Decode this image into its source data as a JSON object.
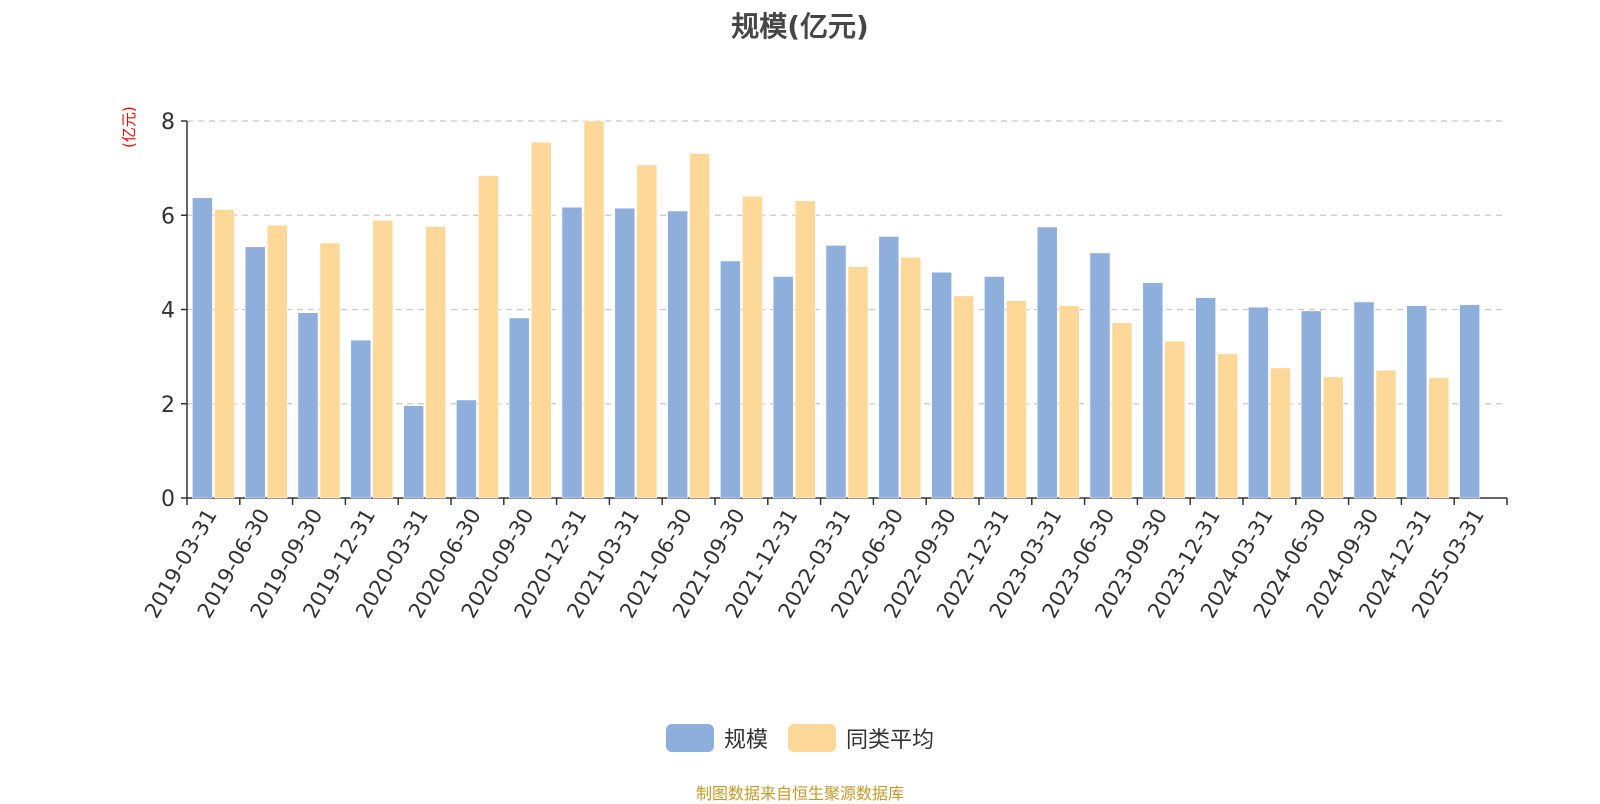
{
  "chart_data": {
    "type": "bar",
    "title": "规模(亿元)",
    "ylabel": "(亿元)",
    "ylim": [
      0,
      8
    ],
    "yticks": [
      0,
      2,
      4,
      6,
      8
    ],
    "grid": true,
    "legend_placement": "bottom-center",
    "categories": [
      "2019-03-31",
      "2019-06-30",
      "2019-09-30",
      "2019-12-31",
      "2020-03-31",
      "2020-06-30",
      "2020-09-30",
      "2020-12-31",
      "2021-03-31",
      "2021-06-30",
      "2021-09-30",
      "2021-12-31",
      "2022-03-31",
      "2022-06-30",
      "2022-09-30",
      "2022-12-31",
      "2023-03-31",
      "2023-06-30",
      "2023-09-30",
      "2023-12-31",
      "2024-03-31",
      "2024-06-30",
      "2024-09-30",
      "2024-12-31",
      "2025-03-31"
    ],
    "series": [
      {
        "name": "规模",
        "color": "#8eaedc",
        "values": [
          6.37,
          5.33,
          3.93,
          3.35,
          1.96,
          2.08,
          3.82,
          6.17,
          6.15,
          6.09,
          5.03,
          4.7,
          5.36,
          5.55,
          4.79,
          4.7,
          5.75,
          5.2,
          4.57,
          4.25,
          4.05,
          3.97,
          4.16,
          4.08,
          4.1
        ]
      },
      {
        "name": "同类平均",
        "color": "#fdd899",
        "values": [
          6.12,
          5.79,
          5.41,
          5.89,
          5.76,
          6.84,
          7.55,
          8.0,
          7.07,
          7.31,
          6.4,
          6.31,
          4.91,
          5.11,
          4.29,
          4.19,
          4.08,
          3.72,
          3.33,
          3.06,
          2.76,
          2.57,
          2.71,
          2.55,
          null
        ]
      }
    ],
    "source_note": "制图数据来自恒生聚源数据库"
  }
}
